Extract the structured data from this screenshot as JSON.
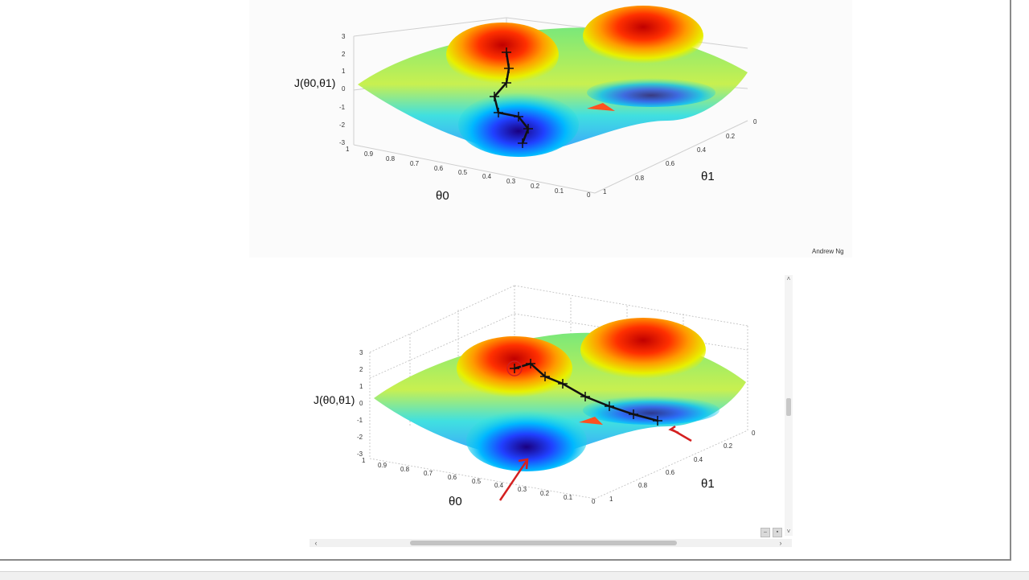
{
  "slide_top": {
    "zlabel": "J(θ0,θ1)",
    "xlabel": "θ0",
    "ylabel": "θ1",
    "z_ticks": [
      "3",
      "2",
      "1",
      "0",
      "-1",
      "-2",
      "-3"
    ],
    "x_ticks": [
      "1",
      "0.9",
      "0.8",
      "0.7",
      "0.6",
      "0.5",
      "0.4",
      "0.3",
      "0.2",
      "0.1",
      "0"
    ],
    "y_ticks": [
      "0",
      "0.2",
      "0.4",
      "0.6",
      "0.8",
      "1"
    ],
    "credit": "Andrew Ng"
  },
  "slide_bottom": {
    "zlabel": "J(θ0,θ1)",
    "xlabel": "θ0",
    "ylabel": "θ1",
    "z_ticks": [
      "3",
      "2",
      "1",
      "0",
      "-1",
      "-2",
      "-3"
    ],
    "x_ticks": [
      "1",
      "0.9",
      "0.8",
      "0.7",
      "0.6",
      "0.5",
      "0.4",
      "0.3",
      "0.2",
      "0.1",
      "0"
    ],
    "y_ticks": [
      "0",
      "0.2",
      "0.4",
      "0.6",
      "0.8",
      "1"
    ]
  },
  "viewer": {
    "hscroll_left": "‹",
    "hscroll_right": "›",
    "vscroll_up": "˄",
    "vscroll_down": "˅",
    "ctrl_minus": "–",
    "ctrl_fit": "▪"
  }
}
